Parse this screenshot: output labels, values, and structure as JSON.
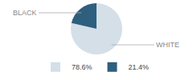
{
  "chart_data": {
    "type": "pie",
    "categories": [
      "78.6%",
      "21.4%"
    ],
    "values": [
      78.6,
      21.4
    ],
    "colors": [
      "#d4dfe8",
      "#2e5f7e"
    ],
    "annotations": [
      {
        "text": "WHITE"
      },
      {
        "text": "BLACK"
      }
    ],
    "legend": "bottom"
  }
}
